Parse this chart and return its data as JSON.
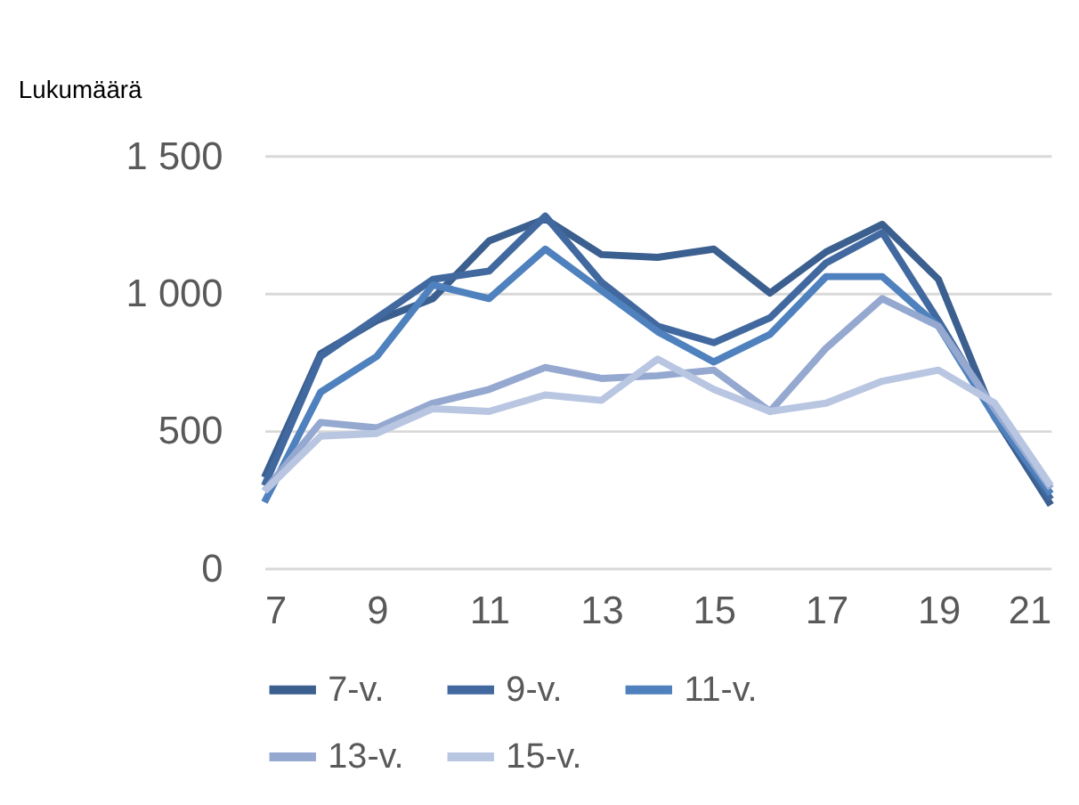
{
  "chart_data": {
    "type": "line",
    "ylabel": "Lukumäärä",
    "x": [
      7,
      8,
      9,
      10,
      11,
      12,
      13,
      14,
      15,
      16,
      17,
      18,
      19,
      20,
      21
    ],
    "series": [
      {
        "name": "7-v.",
        "color": "#3b5f8f",
        "values": [
          330,
          780,
          900,
          980,
          1190,
          1270,
          1140,
          1130,
          1160,
          1000,
          1150,
          1250,
          1050,
          550,
          230
        ]
      },
      {
        "name": "9-v.",
        "color": "#41699f",
        "values": [
          300,
          770,
          910,
          1050,
          1080,
          1280,
          1040,
          880,
          820,
          910,
          1110,
          1220,
          900,
          560,
          250
        ]
      },
      {
        "name": "11-v.",
        "color": "#4e81bd",
        "values": [
          240,
          640,
          770,
          1030,
          980,
          1160,
          1010,
          860,
          750,
          850,
          1060,
          1060,
          880,
          550,
          270
        ]
      },
      {
        "name": "13-v.",
        "color": "#95a8d0",
        "values": [
          280,
          530,
          510,
          600,
          650,
          730,
          690,
          700,
          720,
          570,
          800,
          980,
          880,
          580,
          290
        ]
      },
      {
        "name": "15-v.",
        "color": "#b9c6e2",
        "values": [
          280,
          480,
          490,
          580,
          570,
          630,
          610,
          760,
          650,
          570,
          600,
          680,
          720,
          600,
          300
        ]
      }
    ],
    "xlim": [
      7,
      21
    ],
    "xticks": [
      7,
      9,
      11,
      13,
      15,
      17,
      19,
      21
    ],
    "ylim": [
      0,
      1500
    ],
    "yticks": [
      0,
      500,
      {
        "value": 1000,
        "label": "1 000"
      },
      {
        "value": 1500,
        "label": "1 500"
      }
    ],
    "grid": "y",
    "legend": "bottom",
    "marker": "none",
    "line_style": "solid"
  }
}
